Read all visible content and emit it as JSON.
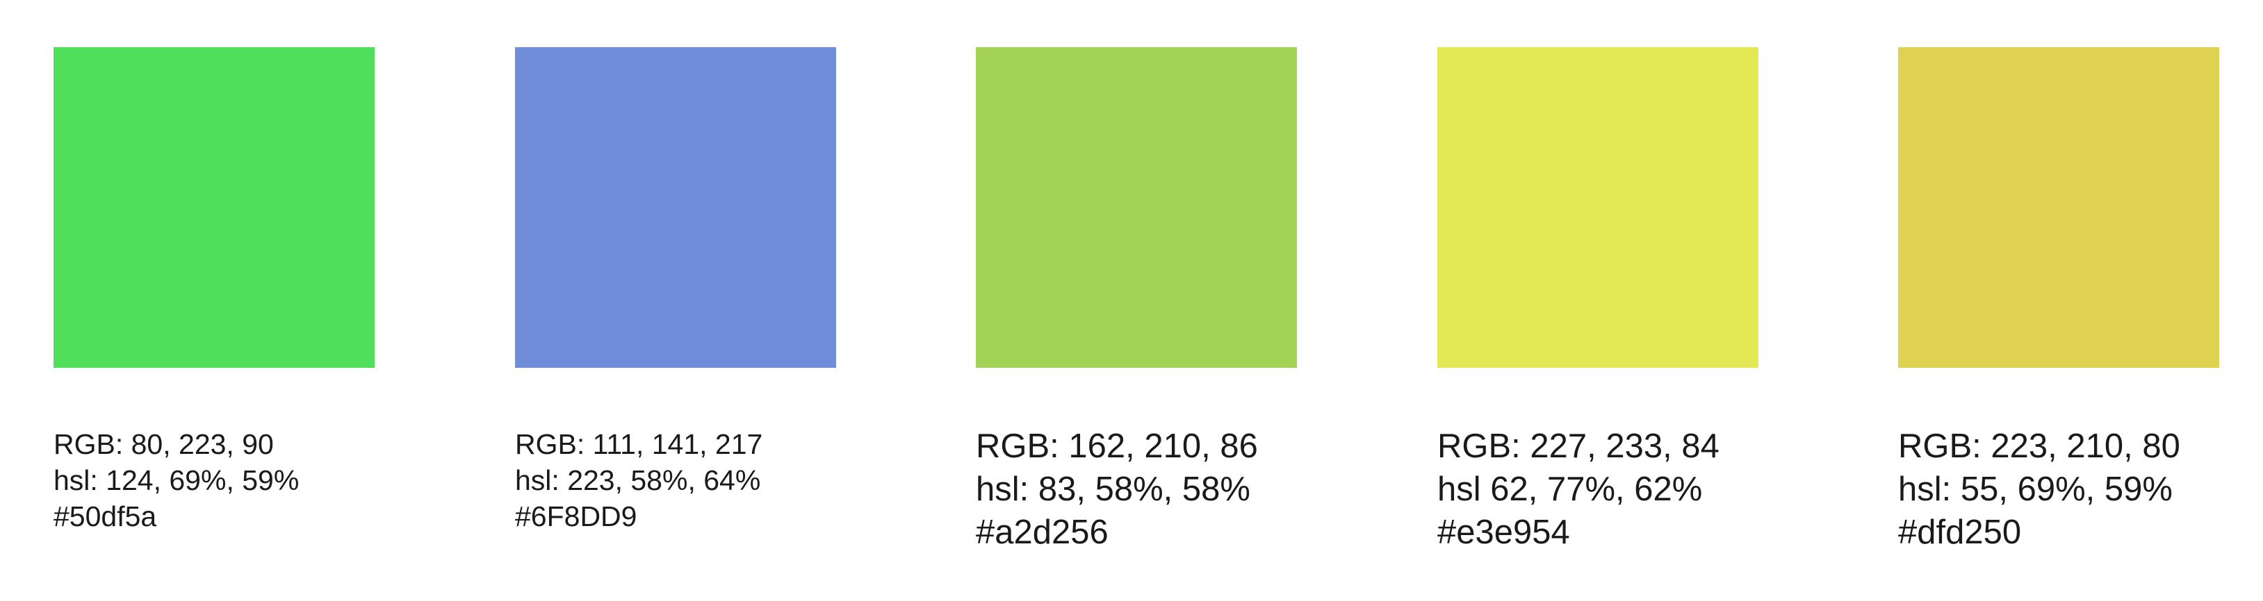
{
  "swatches": [
    {
      "color": "#50df5a",
      "rgb": "RGB: 80, 223, 90",
      "hsl": "hsl: 124, 69%, 59%",
      "hex": "#50df5a"
    },
    {
      "color": "#6F8DD9",
      "rgb": "RGB: 111, 141, 217",
      "hsl": "hsl: 223, 58%, 64%",
      "hex": "#6F8DD9"
    },
    {
      "color": "#a2d256",
      "rgb": "RGB: 162, 210, 86",
      "hsl": "hsl: 83, 58%, 58%",
      "hex": "#a2d256"
    },
    {
      "color": "#e3e954",
      "rgb": "RGB: 227, 233, 84",
      "hsl": "hsl 62, 77%, 62%",
      "hex": "#e3e954"
    },
    {
      "color": "#dfd250",
      "rgb": "RGB: 223, 210, 80",
      "hsl": "hsl: 55, 69%, 59%",
      "hex": "#dfd250"
    }
  ]
}
